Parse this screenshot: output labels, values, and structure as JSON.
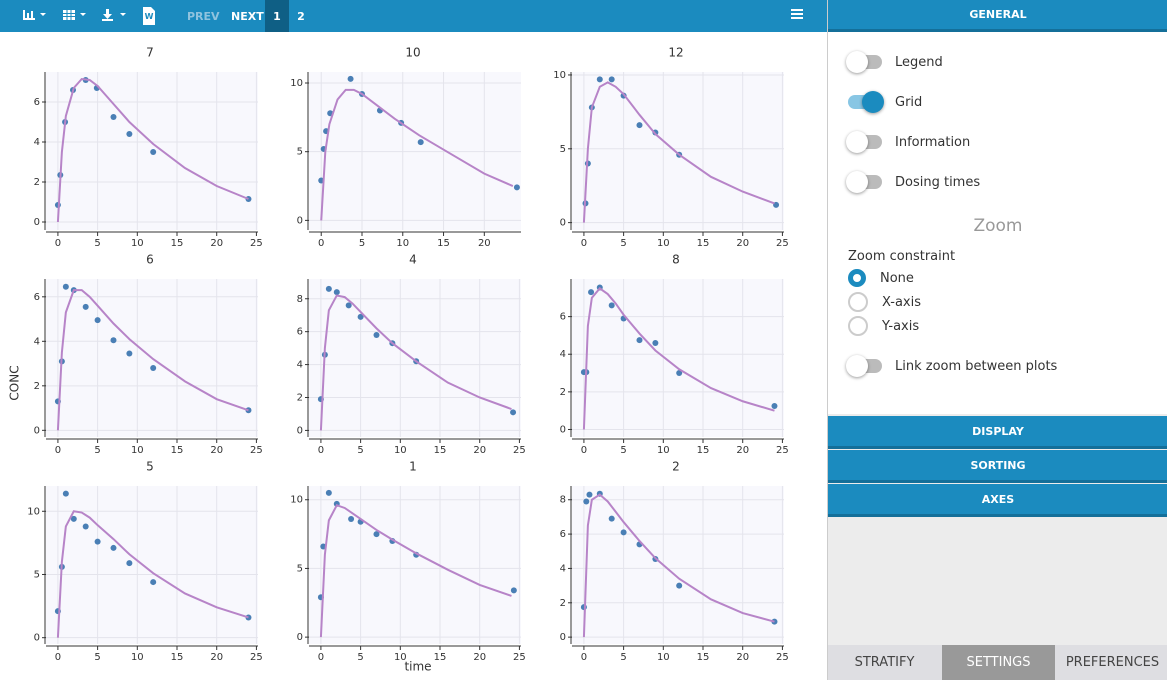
{
  "toolbar": {
    "prev": "PREV",
    "next": "NEXT",
    "pages": [
      {
        "label": "1",
        "selected": true
      },
      {
        "label": "2",
        "selected": false
      }
    ]
  },
  "y_label": "CONC",
  "x_label": "time",
  "chart_data": [
    {
      "type": "scatter",
      "title": "7",
      "xlim": [
        -1.5,
        25.2
      ],
      "ylim": [
        -0.4,
        7.5
      ],
      "xticks": [
        0,
        5,
        10,
        15,
        20,
        25
      ],
      "yticks": [
        0,
        2,
        4,
        6
      ],
      "grid": true,
      "series": [
        {
          "type": "scatter",
          "color": "#4a7fb5",
          "x": [
            0,
            0.3,
            0.9,
            1.9,
            3.5,
            4.9,
            7,
            9,
            12,
            24
          ],
          "values": [
            0.85,
            2.35,
            5.0,
            6.6,
            7.1,
            6.7,
            5.25,
            4.4,
            3.5,
            1.15
          ]
        },
        {
          "type": "line",
          "color": "#b784c8",
          "x": [
            0,
            0.5,
            1,
            2,
            3,
            4,
            5,
            7,
            9,
            12,
            16,
            20,
            24
          ],
          "values": [
            0,
            3.5,
            5.3,
            6.7,
            7.15,
            7.1,
            6.8,
            5.9,
            5.0,
            3.9,
            2.7,
            1.8,
            1.15
          ]
        }
      ]
    },
    {
      "type": "scatter",
      "title": "10",
      "xlim": [
        -1.5,
        24.5
      ],
      "ylim": [
        -0.7,
        10.8
      ],
      "xticks": [
        0,
        5,
        10,
        15,
        20
      ],
      "yticks": [
        0,
        5,
        10
      ],
      "grid": true,
      "series": [
        {
          "type": "scatter",
          "color": "#4a7fb5",
          "x": [
            0,
            0.3,
            0.6,
            1.1,
            3.6,
            5,
            7.2,
            9.8,
            12.2,
            24
          ],
          "values": [
            2.9,
            5.2,
            6.5,
            7.8,
            10.3,
            9.2,
            8.0,
            7.1,
            5.7,
            2.4
          ]
        },
        {
          "type": "line",
          "color": "#b784c8",
          "x": [
            0,
            0.5,
            1,
            2,
            3,
            4,
            5,
            7,
            9,
            12,
            16,
            20,
            23.5
          ],
          "values": [
            0,
            5,
            7,
            8.8,
            9.5,
            9.5,
            9.2,
            8.3,
            7.4,
            6.2,
            4.8,
            3.4,
            2.5
          ]
        }
      ]
    },
    {
      "type": "scatter",
      "title": "12",
      "xlim": [
        -1.5,
        25.2
      ],
      "ylim": [
        -0.5,
        10.2
      ],
      "xticks": [
        0,
        5,
        10,
        15,
        20,
        25
      ],
      "yticks": [
        0,
        5,
        10
      ],
      "grid": true,
      "series": [
        {
          "type": "scatter",
          "color": "#4a7fb5",
          "x": [
            0.2,
            0.5,
            1,
            2,
            3.5,
            5,
            7,
            9,
            12,
            24.2
          ],
          "values": [
            1.3,
            4.0,
            7.8,
            9.7,
            9.7,
            8.6,
            6.6,
            6.1,
            4.6,
            1.2
          ]
        },
        {
          "type": "line",
          "color": "#b784c8",
          "x": [
            0,
            0.5,
            1,
            2,
            3,
            4,
            5,
            7,
            9,
            12,
            16,
            20,
            24
          ],
          "values": [
            0,
            5,
            7.8,
            9.2,
            9.5,
            9.2,
            8.7,
            7.3,
            6.0,
            4.6,
            3.1,
            2.1,
            1.3
          ]
        }
      ]
    },
    {
      "type": "scatter",
      "title": "6",
      "xlim": [
        -1.5,
        25.2
      ],
      "ylim": [
        -0.3,
        6.8
      ],
      "xticks": [
        0,
        5,
        10,
        15,
        20,
        25
      ],
      "yticks": [
        0,
        2,
        4,
        6
      ],
      "grid": true,
      "series": [
        {
          "type": "scatter",
          "color": "#4a7fb5",
          "x": [
            0,
            0.5,
            1,
            2,
            3.5,
            5,
            7,
            9,
            12,
            24
          ],
          "values": [
            1.3,
            3.1,
            6.45,
            6.3,
            5.55,
            4.95,
            4.05,
            3.45,
            2.8,
            0.9
          ]
        },
        {
          "type": "line",
          "color": "#b784c8",
          "x": [
            0,
            0.5,
            1,
            2,
            3,
            4,
            5,
            7,
            9,
            12,
            16,
            20,
            24
          ],
          "values": [
            0,
            3.5,
            5.3,
            6.3,
            6.3,
            6.0,
            5.6,
            4.8,
            4.1,
            3.2,
            2.2,
            1.4,
            0.9
          ]
        }
      ]
    },
    {
      "type": "scatter",
      "title": "4",
      "xlim": [
        -1.5,
        25.2
      ],
      "ylim": [
        -0.4,
        9.2
      ],
      "xticks": [
        0,
        5,
        10,
        15,
        20,
        25
      ],
      "yticks": [
        0,
        2,
        4,
        6,
        8
      ],
      "grid": true,
      "series": [
        {
          "type": "scatter",
          "color": "#4a7fb5",
          "x": [
            0,
            0.5,
            1,
            2,
            3.5,
            5,
            7,
            9,
            12,
            24.2
          ],
          "values": [
            1.9,
            4.6,
            8.6,
            8.4,
            7.6,
            6.9,
            5.8,
            5.3,
            4.2,
            1.1
          ]
        },
        {
          "type": "line",
          "color": "#b784c8",
          "x": [
            0,
            0.5,
            1,
            2,
            3,
            4,
            5,
            7,
            9,
            12,
            16,
            20,
            24
          ],
          "values": [
            0,
            5,
            7.3,
            8.2,
            8.1,
            7.7,
            7.2,
            6.2,
            5.3,
            4.2,
            2.9,
            2.0,
            1.3
          ]
        }
      ]
    },
    {
      "type": "scatter",
      "title": "8",
      "xlim": [
        -1.5,
        25.2
      ],
      "ylim": [
        -0.4,
        8
      ],
      "xticks": [
        0,
        5,
        10,
        15,
        20,
        25
      ],
      "yticks": [
        0,
        2,
        4,
        6
      ],
      "grid": true,
      "series": [
        {
          "type": "scatter",
          "color": "#4a7fb5",
          "x": [
            0,
            0.3,
            0.9,
            2,
            3.5,
            5,
            7,
            9,
            12,
            24
          ],
          "values": [
            3.05,
            3.05,
            7.3,
            7.55,
            6.6,
            5.9,
            4.75,
            4.6,
            3.0,
            1.25
          ]
        },
        {
          "type": "line",
          "color": "#b784c8",
          "x": [
            0,
            0.5,
            1,
            2,
            3,
            4,
            5,
            7,
            9,
            12,
            16,
            20,
            24
          ],
          "values": [
            0,
            5.5,
            7.0,
            7.5,
            7.2,
            6.7,
            6.1,
            5.1,
            4.2,
            3.2,
            2.2,
            1.5,
            1.0
          ]
        }
      ]
    },
    {
      "type": "scatter",
      "title": "5",
      "xlim": [
        -1.5,
        25.2
      ],
      "ylim": [
        -0.5,
        12
      ],
      "xticks": [
        0,
        5,
        10,
        15,
        20,
        25
      ],
      "yticks": [
        0,
        5,
        10
      ],
      "grid": true,
      "series": [
        {
          "type": "scatter",
          "color": "#4a7fb5",
          "x": [
            0,
            0.5,
            1,
            2,
            3.5,
            5,
            7,
            9,
            12,
            24
          ],
          "values": [
            2.1,
            5.6,
            11.4,
            9.4,
            8.8,
            7.6,
            7.1,
            5.9,
            4.4,
            1.6
          ]
        },
        {
          "type": "line",
          "color": "#b784c8",
          "x": [
            0,
            0.5,
            1,
            2,
            3,
            4,
            5,
            7,
            9,
            12,
            16,
            20,
            24
          ],
          "values": [
            0,
            6,
            8.8,
            10,
            9.9,
            9.5,
            8.9,
            7.8,
            6.6,
            5.1,
            3.5,
            2.4,
            1.6
          ]
        }
      ]
    },
    {
      "type": "scatter",
      "title": "1",
      "xlim": [
        -1.5,
        25.2
      ],
      "ylim": [
        -0.5,
        11
      ],
      "xticks": [
        0,
        5,
        10,
        15,
        20,
        25
      ],
      "yticks": [
        0,
        5,
        10
      ],
      "grid": true,
      "series": [
        {
          "type": "scatter",
          "color": "#4a7fb5",
          "x": [
            0,
            0.3,
            1,
            2,
            3.8,
            5,
            7,
            9,
            12,
            24.3
          ],
          "values": [
            2.9,
            6.6,
            10.5,
            9.7,
            8.6,
            8.4,
            7.5,
            7.0,
            6.0,
            3.4
          ]
        },
        {
          "type": "line",
          "color": "#b784c8",
          "x": [
            0,
            0.5,
            1,
            2,
            3,
            4,
            5,
            7,
            9,
            12,
            16,
            20,
            24
          ],
          "values": [
            0,
            6,
            8.5,
            9.6,
            9.4,
            9.0,
            8.6,
            7.8,
            7.1,
            6.1,
            4.9,
            3.8,
            3.0
          ]
        }
      ]
    },
    {
      "type": "scatter",
      "title": "2",
      "xlim": [
        -1.5,
        25.2
      ],
      "ylim": [
        -0.4,
        8.8
      ],
      "xticks": [
        0,
        5,
        10,
        15,
        20,
        25
      ],
      "yticks": [
        0,
        2,
        4,
        6,
        8
      ],
      "grid": true,
      "series": [
        {
          "type": "scatter",
          "color": "#4a7fb5",
          "x": [
            0,
            0.3,
            0.7,
            2,
            3.5,
            5,
            7,
            9,
            12,
            24
          ],
          "values": [
            1.75,
            7.9,
            8.3,
            8.35,
            6.9,
            6.1,
            5.4,
            4.55,
            3.0,
            0.9
          ]
        },
        {
          "type": "line",
          "color": "#b784c8",
          "x": [
            0,
            0.5,
            1,
            2,
            3,
            4,
            5,
            7,
            9,
            12,
            16,
            20,
            24
          ],
          "values": [
            0,
            6.5,
            8.0,
            8.3,
            7.9,
            7.3,
            6.7,
            5.6,
            4.6,
            3.4,
            2.2,
            1.4,
            0.9
          ]
        }
      ]
    }
  ],
  "settings": {
    "header": "GENERAL",
    "toggles": [
      {
        "label": "Legend",
        "on": false
      },
      {
        "label": "Grid",
        "on": true
      },
      {
        "label": "Information",
        "on": false
      },
      {
        "label": "Dosing times",
        "on": false
      }
    ],
    "zoom_title": "Zoom",
    "zoom_constraint_label": "Zoom constraint",
    "zoom_options": [
      {
        "label": "None",
        "selected": true
      },
      {
        "label": "X-axis",
        "selected": false
      },
      {
        "label": "Y-axis",
        "selected": false
      }
    ],
    "link_toggle": {
      "label": "Link zoom between plots",
      "on": false
    },
    "sections": [
      "DISPLAY",
      "SORTING",
      "AXES"
    ]
  },
  "tabs": [
    {
      "label": "STRATIFY",
      "selected": false
    },
    {
      "label": "SETTINGS",
      "selected": true
    },
    {
      "label": "PREFERENCES",
      "selected": false
    }
  ]
}
